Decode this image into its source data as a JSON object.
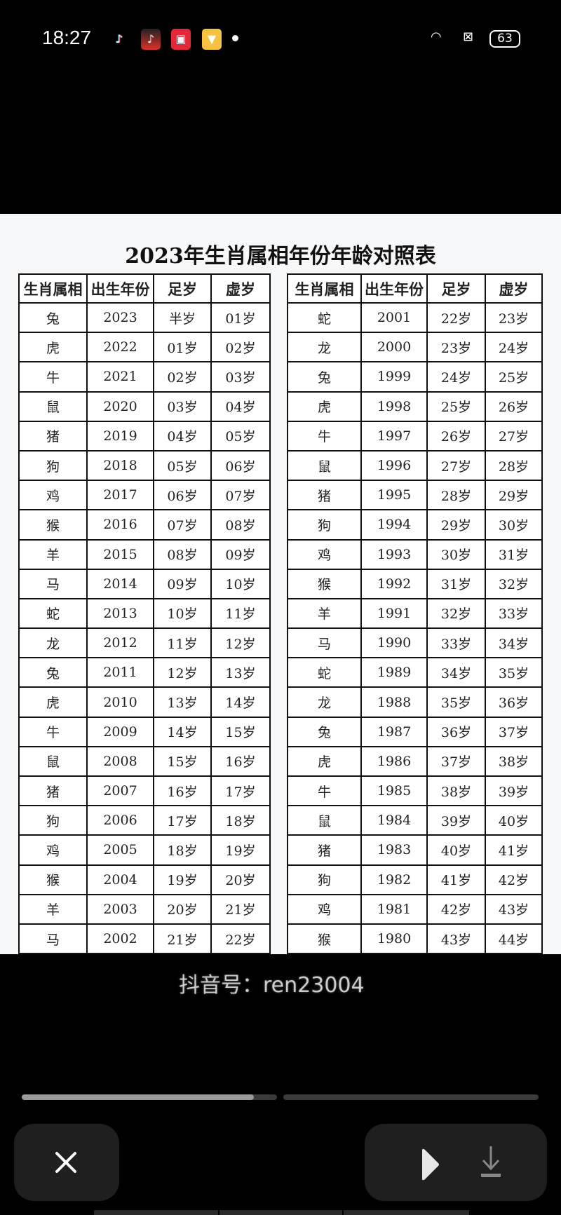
{
  "status_bar": {
    "time": "18:27",
    "battery": "63",
    "app_icons": [
      "tiktok-icon",
      "tiktok-lite-icon",
      "kuaishou-icon",
      "yellow-app-icon"
    ]
  },
  "image": {
    "title": "2023年生肖属相年份年龄对照表",
    "headers": [
      "生肖属相",
      "出生年份",
      "足岁",
      "虚岁"
    ],
    "left_rows": [
      [
        "兔",
        "2023",
        "半岁",
        "01岁"
      ],
      [
        "虎",
        "2022",
        "01岁",
        "02岁"
      ],
      [
        "牛",
        "2021",
        "02岁",
        "03岁"
      ],
      [
        "鼠",
        "2020",
        "03岁",
        "04岁"
      ],
      [
        "猪",
        "2019",
        "04岁",
        "05岁"
      ],
      [
        "狗",
        "2018",
        "05岁",
        "06岁"
      ],
      [
        "鸡",
        "2017",
        "06岁",
        "07岁"
      ],
      [
        "猴",
        "2016",
        "07岁",
        "08岁"
      ],
      [
        "羊",
        "2015",
        "08岁",
        "09岁"
      ],
      [
        "马",
        "2014",
        "09岁",
        "10岁"
      ],
      [
        "蛇",
        "2013",
        "10岁",
        "11岁"
      ],
      [
        "龙",
        "2012",
        "11岁",
        "12岁"
      ],
      [
        "兔",
        "2011",
        "12岁",
        "13岁"
      ],
      [
        "虎",
        "2010",
        "13岁",
        "14岁"
      ],
      [
        "牛",
        "2009",
        "14岁",
        "15岁"
      ],
      [
        "鼠",
        "2008",
        "15岁",
        "16岁"
      ],
      [
        "猪",
        "2007",
        "16岁",
        "17岁"
      ],
      [
        "狗",
        "2006",
        "17岁",
        "18岁"
      ],
      [
        "鸡",
        "2005",
        "18岁",
        "19岁"
      ],
      [
        "猴",
        "2004",
        "19岁",
        "20岁"
      ],
      [
        "羊",
        "2003",
        "20岁",
        "21岁"
      ],
      [
        "马",
        "2002",
        "21岁",
        "22岁"
      ]
    ],
    "right_rows": [
      [
        "蛇",
        "2001",
        "22岁",
        "23岁"
      ],
      [
        "龙",
        "2000",
        "23岁",
        "24岁"
      ],
      [
        "兔",
        "1999",
        "24岁",
        "25岁"
      ],
      [
        "虎",
        "1998",
        "25岁",
        "26岁"
      ],
      [
        "牛",
        "1997",
        "26岁",
        "27岁"
      ],
      [
        "鼠",
        "1996",
        "27岁",
        "28岁"
      ],
      [
        "猪",
        "1995",
        "28岁",
        "29岁"
      ],
      [
        "狗",
        "1994",
        "29岁",
        "30岁"
      ],
      [
        "鸡",
        "1993",
        "30岁",
        "31岁"
      ],
      [
        "猴",
        "1992",
        "31岁",
        "32岁"
      ],
      [
        "羊",
        "1991",
        "32岁",
        "33岁"
      ],
      [
        "马",
        "1990",
        "33岁",
        "34岁"
      ],
      [
        "蛇",
        "1989",
        "34岁",
        "35岁"
      ],
      [
        "龙",
        "1988",
        "35岁",
        "36岁"
      ],
      [
        "兔",
        "1987",
        "36岁",
        "37岁"
      ],
      [
        "虎",
        "1986",
        "37岁",
        "38岁"
      ],
      [
        "牛",
        "1985",
        "38岁",
        "39岁"
      ],
      [
        "鼠",
        "1984",
        "39岁",
        "40岁"
      ],
      [
        "猪",
        "1983",
        "40岁",
        "41岁"
      ],
      [
        "狗",
        "1982",
        "41岁",
        "42岁"
      ],
      [
        "鸡",
        "1981",
        "42岁",
        "43岁"
      ],
      [
        "猴",
        "1980",
        "43岁",
        "44岁"
      ]
    ],
    "watermark": "抖音号：ren23004"
  },
  "viewer": {
    "progress_segments": [
      0.91,
      0
    ],
    "close_icon": "close-icon",
    "play_icon": "play-icon",
    "download_icon": "download-icon"
  }
}
